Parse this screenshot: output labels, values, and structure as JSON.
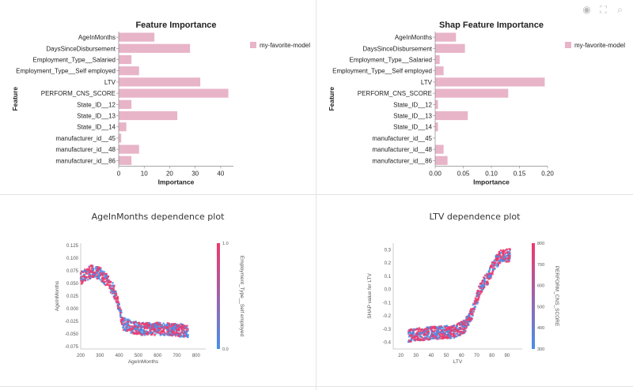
{
  "toolbar": {
    "icons": [
      "eye-icon",
      "expand-icon",
      "search-icon"
    ]
  },
  "colors": {
    "bar": "#e8b4c8",
    "legend_swatch": "#e8b4c8",
    "low": "#4a8fe8",
    "high": "#f0386b"
  },
  "chart_data": [
    {
      "type": "bar",
      "title": "Feature Importance",
      "xlabel": "Importance",
      "ylabel": "Feature",
      "categories": [
        "AgeInMonths",
        "DaysSinceDisbursement",
        "Employment_Type__Salaried",
        "Employment_Type__Self employed",
        "LTV",
        "PERFORM_CNS_SCORE",
        "State_ID__12",
        "State_ID__13",
        "State_ID__14",
        "manufacturer_id__45",
        "manufacturer_id__48",
        "manufacturer_id__86"
      ],
      "values": [
        14,
        28,
        5,
        8,
        32,
        43,
        5,
        23,
        3,
        1,
        8,
        5
      ],
      "xlim": [
        0,
        45
      ],
      "xticks": [
        0,
        10,
        20,
        30,
        40
      ],
      "tick_labels": [
        "0",
        "10",
        "20",
        "30",
        "40"
      ],
      "legend": [
        "my-favorite-model"
      ]
    },
    {
      "type": "bar",
      "title": "Shap Feature Importance",
      "xlabel": "Importance",
      "ylabel": "Feature",
      "categories": [
        "AgeInMonths",
        "DaysSinceDisbursement",
        "Employment_Type__Salaried",
        "Employment_Type__Self employed",
        "LTV",
        "PERFORM_CNS_SCORE",
        "State_ID__12",
        "State_ID__13",
        "State_ID__14",
        "manufacturer_id__45",
        "manufacturer_id__48",
        "manufacturer_id__86"
      ],
      "values": [
        0.037,
        0.053,
        0.008,
        0.015,
        0.195,
        0.13,
        0.005,
        0.058,
        0.005,
        0.0,
        0.015,
        0.022
      ],
      "xlim": [
        0,
        0.2
      ],
      "xticks": [
        0,
        0.05,
        0.1,
        0.15,
        0.2
      ],
      "tick_labels": [
        "0.00",
        "0.05",
        "0.10",
        "0.15",
        "0.20"
      ],
      "legend": [
        "my-favorite-model"
      ]
    },
    {
      "type": "scatter",
      "title": "AgeInMonths dependence plot",
      "xlabel": "AgeInMonths",
      "ylabel": "AgeInMonths",
      "color_label": "Employment_Type__Self employed",
      "xlim": [
        200,
        850
      ],
      "ylim": [
        -0.08,
        0.13
      ],
      "xticks": [
        200,
        300,
        400,
        500,
        600,
        700,
        800
      ],
      "xtick_labels": [
        "200",
        "300",
        "400",
        "500",
        "600",
        "700",
        "800"
      ],
      "yticks": [
        -0.075,
        -0.05,
        -0.025,
        0.0,
        0.025,
        0.05,
        0.075,
        0.1,
        0.125
      ],
      "ytick_labels": [
        "-0.075",
        "-0.050",
        "-0.025",
        "0.000",
        "0.025",
        "0.050",
        "0.075",
        "0.100",
        "0.125"
      ],
      "colorbar_ticks": [
        0.0,
        1.0
      ],
      "colorbar_tick_labels": [
        "0.0",
        "1.0"
      ],
      "trend_x": [
        200,
        260,
        300,
        340,
        380,
        420,
        500,
        600,
        700,
        760
      ],
      "trend_y": [
        0.06,
        0.075,
        0.07,
        0.055,
        0.03,
        -0.03,
        -0.04,
        -0.04,
        -0.042,
        -0.045
      ]
    },
    {
      "type": "scatter",
      "title": "LTV dependence plot",
      "xlabel": "LTV",
      "ylabel": "SHAP value for LTV",
      "color_label": "PERFORM_CNS_SCORE",
      "xlim": [
        15,
        100
      ],
      "ylim": [
        -0.45,
        0.35
      ],
      "xticks": [
        20,
        30,
        40,
        50,
        60,
        70,
        80,
        90
      ],
      "xtick_labels": [
        "20",
        "30",
        "40",
        "50",
        "60",
        "70",
        "80",
        "90"
      ],
      "yticks": [
        -0.4,
        -0.3,
        -0.2,
        -0.1,
        0.0,
        0.1,
        0.2,
        0.3
      ],
      "ytick_labels": [
        "-0.4",
        "-0.3",
        "-0.2",
        "-0.1",
        "0.0",
        "0.1",
        "0.2",
        "0.3"
      ],
      "colorbar_ticks": [
        300,
        400,
        500,
        600,
        700,
        800
      ],
      "colorbar_tick_labels": [
        "300",
        "400",
        "500",
        "600",
        "700",
        "800"
      ],
      "trend_x": [
        25,
        40,
        55,
        62,
        68,
        72,
        78,
        82,
        86,
        92
      ],
      "trend_y": [
        -0.35,
        -0.33,
        -0.32,
        -0.28,
        -0.15,
        0.0,
        0.1,
        0.2,
        0.25,
        0.26
      ]
    }
  ]
}
